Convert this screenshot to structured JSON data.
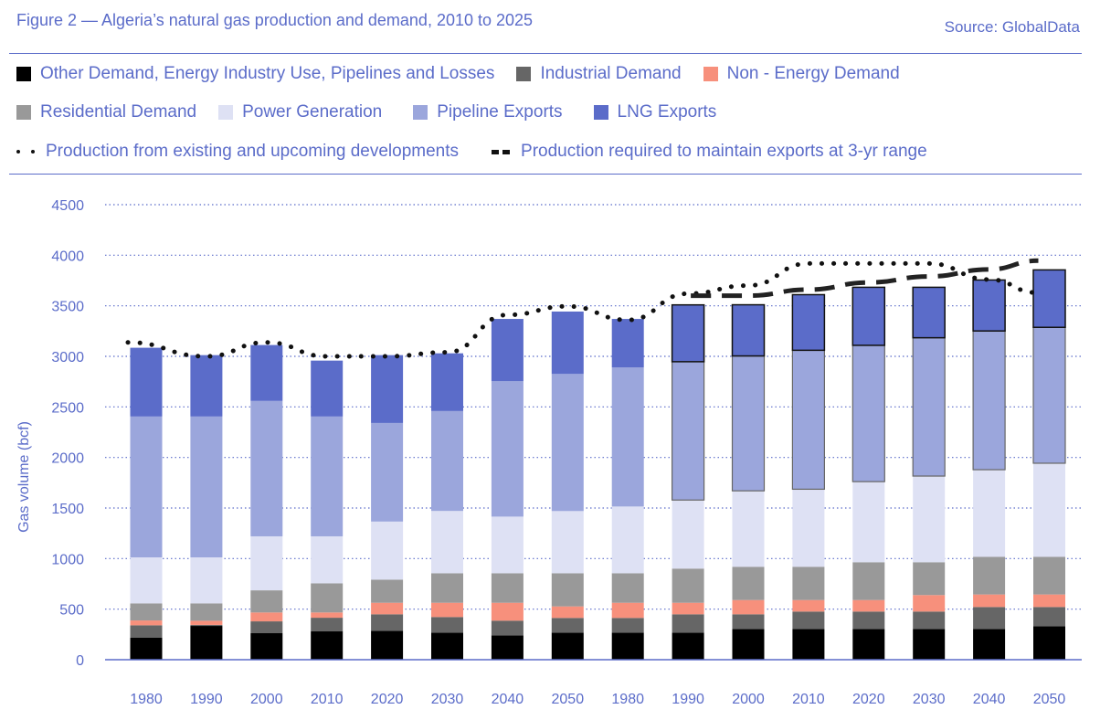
{
  "header": {
    "title": "Figure 2 — Algeria’s natural gas production and demand, 2010 to 2025",
    "source": "Source: GlobalData"
  },
  "legend": {
    "row1": [
      {
        "label": "Other Demand, Energy Industry Use, Pipelines and Losses",
        "color": "#000000"
      },
      {
        "label": "Industrial Demand",
        "color": "#666666"
      },
      {
        "label": "Non - Energy Demand",
        "color": "#f7907c"
      }
    ],
    "row2": [
      {
        "label": "Residential Demand",
        "color": "#999999"
      },
      {
        "label": "Power Generation",
        "color": "#dee1f4"
      },
      {
        "label": "Pipeline Exports",
        "color": "#9ba6dc"
      },
      {
        "label": "LNG Exports",
        "color": "#5b6cc9"
      }
    ],
    "row3": [
      {
        "label": "Production from existing  and upcoming developments",
        "style": "dotted"
      },
      {
        "label": "Production required to maintain exports at 3-yr range",
        "style": "dashed"
      }
    ]
  },
  "chart_data": {
    "type": "bar",
    "stacked": true,
    "title": "Figure 2 — Algeria’s natural gas production and demand, 2010 to 2025",
    "xlabel": "",
    "ylabel": "Gas volume (bcf)",
    "ylim": [
      0,
      4500
    ],
    "yticks": [
      0,
      500,
      1000,
      1500,
      2000,
      2500,
      3000,
      3500,
      4000,
      4500
    ],
    "grid": true,
    "legend_position": "top",
    "categories": [
      "1980",
      "1990",
      "2000",
      "2010",
      "2020",
      "2030",
      "2040",
      "2050",
      "1980",
      "1990",
      "2000",
      "2010",
      "2020",
      "2030",
      "2040",
      "2050"
    ],
    "series": [
      {
        "name": "Other Demand, Energy Industry Use, Pipelines and Losses",
        "color": "#000000",
        "values": [
          217,
          334,
          262,
          280,
          286,
          268,
          241,
          268,
          268,
          268,
          304,
          304,
          304,
          304,
          304,
          331
        ]
      },
      {
        "name": "Industrial Demand",
        "color": "#666666",
        "values": [
          123,
          10,
          117,
          135,
          163,
          154,
          145,
          145,
          145,
          181,
          145,
          172,
          172,
          172,
          217,
          190
        ]
      },
      {
        "name": "Non - Energy Demand",
        "color": "#f7907c",
        "values": [
          48,
          41,
          88,
          52,
          114,
          141,
          177,
          114,
          150,
          114,
          141,
          114,
          114,
          163,
          124,
          124
        ]
      },
      {
        "name": "Residential Demand",
        "color": "#999999",
        "values": [
          169,
          172,
          219,
          288,
          229,
          292,
          292,
          328,
          292,
          338,
          329,
          329,
          374,
          325,
          373,
          373
        ]
      },
      {
        "name": "Power Generation",
        "color": "#dee1f4",
        "values": [
          455,
          455,
          534,
          465,
          574,
          616,
          560,
          615,
          660,
          678,
          751,
          767,
          797,
          852,
          861,
          925
        ]
      },
      {
        "name": "Pipeline Exports",
        "color": "#9ba6dc",
        "values": [
          1393,
          1393,
          1339,
          1185,
          975,
          988,
          1339,
          1356,
          1375,
          1368,
          1334,
          1374,
          1348,
          1368,
          1372,
          1344
        ]
      },
      {
        "name": "LNG Exports",
        "color": "#5b6cc9",
        "values": [
          680,
          607,
          553,
          553,
          671,
          571,
          616,
          617,
          480,
          562,
          506,
          550,
          574,
          499,
          504,
          568
        ]
      }
    ],
    "outlined_from_index": 9,
    "lines": [
      {
        "name": "Production from existing  and upcoming developments",
        "style": "dotted",
        "values": [
          3138,
          3000,
          3138,
          3000,
          3000,
          3040,
          3410,
          3495,
          3360,
          3620,
          3700,
          3918,
          3918,
          3918,
          3760,
          3630
        ]
      },
      {
        "name": "Production required to maintain exports at 3-yr range",
        "style": "dashed",
        "start_index": 9,
        "values": [
          3600,
          3600,
          3660,
          3730,
          3790,
          3860,
          3946
        ]
      }
    ]
  }
}
